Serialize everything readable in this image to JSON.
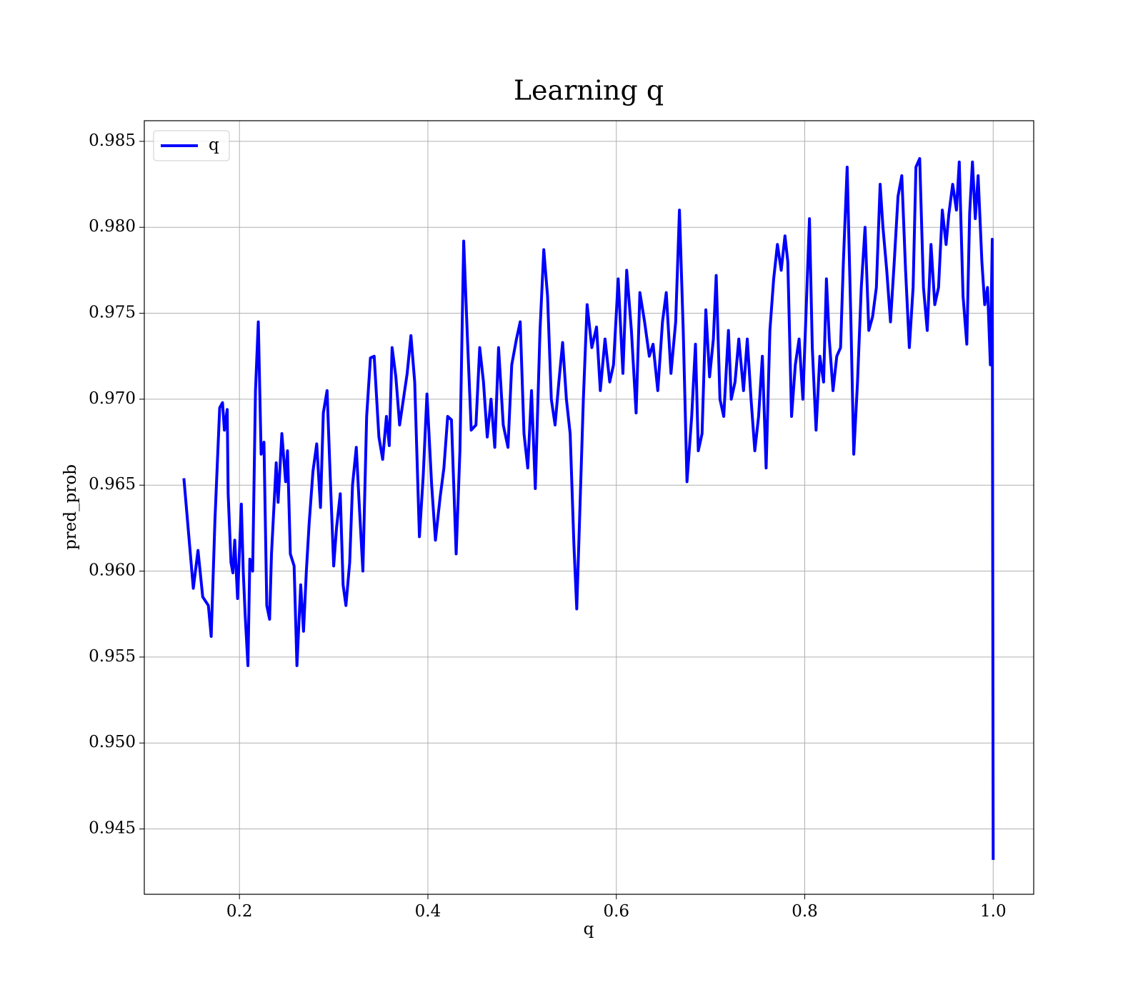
{
  "chart_data": {
    "type": "line",
    "title": "Learning q",
    "xlabel": "q",
    "ylabel": "pred_prob",
    "x": [
      0.141,
      0.151,
      0.156,
      0.161,
      0.167,
      0.17,
      0.174,
      0.179,
      0.182,
      0.184,
      0.187,
      0.188,
      0.191,
      0.193,
      0.195,
      0.198,
      0.202,
      0.204,
      0.206,
      0.209,
      0.211,
      0.214,
      0.217,
      0.22,
      0.223,
      0.226,
      0.229,
      0.232,
      0.234,
      0.239,
      0.241,
      0.245,
      0.249,
      0.251,
      0.254,
      0.258,
      0.261,
      0.265,
      0.268,
      0.271,
      0.274,
      0.278,
      0.282,
      0.286,
      0.289,
      0.293,
      0.296,
      0.3,
      0.303,
      0.307,
      0.31,
      0.313,
      0.317,
      0.32,
      0.324,
      0.327,
      0.331,
      0.335,
      0.339,
      0.343,
      0.348,
      0.352,
      0.356,
      0.359,
      0.362,
      0.366,
      0.37,
      0.374,
      0.378,
      0.382,
      0.386,
      0.391,
      0.395,
      0.399,
      0.404,
      0.408,
      0.413,
      0.417,
      0.421,
      0.425,
      0.43,
      0.434,
      0.438,
      0.442,
      0.446,
      0.451,
      0.455,
      0.459,
      0.463,
      0.467,
      0.471,
      0.475,
      0.48,
      0.485,
      0.489,
      0.494,
      0.498,
      0.502,
      0.506,
      0.51,
      0.514,
      0.519,
      0.523,
      0.527,
      0.531,
      0.535,
      0.539,
      0.543,
      0.547,
      0.551,
      0.555,
      0.558,
      0.561,
      0.565,
      0.569,
      0.574,
      0.579,
      0.583,
      0.588,
      0.593,
      0.597,
      0.602,
      0.607,
      0.611,
      0.616,
      0.621,
      0.625,
      0.63,
      0.635,
      0.639,
      0.644,
      0.649,
      0.653,
      0.658,
      0.663,
      0.667,
      0.671,
      0.675,
      0.68,
      0.684,
      0.687,
      0.691,
      0.695,
      0.699,
      0.703,
      0.706,
      0.71,
      0.714,
      0.719,
      0.722,
      0.726,
      0.73,
      0.735,
      0.739,
      0.743,
      0.747,
      0.751,
      0.755,
      0.759,
      0.763,
      0.767,
      0.771,
      0.775,
      0.779,
      0.782,
      0.786,
      0.79,
      0.794,
      0.798,
      0.802,
      0.805,
      0.808,
      0.812,
      0.816,
      0.82,
      0.823,
      0.826,
      0.83,
      0.834,
      0.838,
      0.841,
      0.845,
      0.849,
      0.852,
      0.856,
      0.86,
      0.864,
      0.868,
      0.872,
      0.876,
      0.88,
      0.883,
      0.887,
      0.891,
      0.895,
      0.899,
      0.903,
      0.907,
      0.911,
      0.915,
      0.918,
      0.922,
      0.926,
      0.93,
      0.934,
      0.938,
      0.942,
      0.946,
      0.95,
      0.953,
      0.957,
      0.961,
      0.964,
      0.968,
      0.972,
      0.975,
      0.978,
      0.981,
      0.984,
      0.988,
      0.991,
      0.994,
      0.997,
      0.999,
      1.0
    ],
    "series": [
      {
        "name": "q",
        "color": "#0000ff",
        "values": [
          0.9654,
          0.959,
          0.9612,
          0.9585,
          0.958,
          0.9562,
          0.963,
          0.9695,
          0.9698,
          0.9682,
          0.9694,
          0.9645,
          0.9605,
          0.9599,
          0.9618,
          0.9584,
          0.9639,
          0.96,
          0.9575,
          0.9545,
          0.9607,
          0.96,
          0.9705,
          0.9745,
          0.9668,
          0.9675,
          0.958,
          0.9572,
          0.961,
          0.9663,
          0.964,
          0.968,
          0.9652,
          0.967,
          0.961,
          0.9603,
          0.9545,
          0.9592,
          0.9565,
          0.96,
          0.9628,
          0.9658,
          0.9674,
          0.9637,
          0.9692,
          0.9705,
          0.966,
          0.9603,
          0.9625,
          0.9645,
          0.9592,
          0.958,
          0.9605,
          0.965,
          0.9672,
          0.964,
          0.96,
          0.969,
          0.9724,
          0.9725,
          0.9678,
          0.9665,
          0.969,
          0.9673,
          0.973,
          0.9713,
          0.9685,
          0.97,
          0.9715,
          0.9737,
          0.971,
          0.962,
          0.9655,
          0.9703,
          0.965,
          0.9618,
          0.9643,
          0.966,
          0.969,
          0.9688,
          0.961,
          0.967,
          0.9792,
          0.9735,
          0.9682,
          0.9685,
          0.973,
          0.971,
          0.9678,
          0.97,
          0.9672,
          0.973,
          0.9685,
          0.9672,
          0.972,
          0.9735,
          0.9745,
          0.968,
          0.966,
          0.9705,
          0.9648,
          0.974,
          0.9787,
          0.976,
          0.97,
          0.9685,
          0.971,
          0.9733,
          0.97,
          0.968,
          0.9615,
          0.9578,
          0.963,
          0.97,
          0.9755,
          0.973,
          0.9742,
          0.9705,
          0.9735,
          0.971,
          0.972,
          0.977,
          0.9715,
          0.9775,
          0.974,
          0.9692,
          0.9762,
          0.9745,
          0.9725,
          0.9732,
          0.9705,
          0.9745,
          0.9762,
          0.9715,
          0.9745,
          0.981,
          0.974,
          0.9652,
          0.969,
          0.9732,
          0.967,
          0.968,
          0.9752,
          0.9713,
          0.9735,
          0.9772,
          0.97,
          0.969,
          0.974,
          0.97,
          0.971,
          0.9735,
          0.9705,
          0.9735,
          0.97,
          0.967,
          0.969,
          0.9725,
          0.966,
          0.974,
          0.977,
          0.979,
          0.9775,
          0.9795,
          0.978,
          0.969,
          0.972,
          0.9735,
          0.97,
          0.976,
          0.9805,
          0.973,
          0.9682,
          0.9725,
          0.971,
          0.977,
          0.9735,
          0.9705,
          0.9725,
          0.973,
          0.978,
          0.9835,
          0.9745,
          0.9668,
          0.971,
          0.9765,
          0.98,
          0.974,
          0.9748,
          0.9765,
          0.9825,
          0.98,
          0.9775,
          0.9745,
          0.978,
          0.9818,
          0.983,
          0.9775,
          0.973,
          0.9765,
          0.9835,
          0.984,
          0.9765,
          0.974,
          0.979,
          0.9755,
          0.9765,
          0.981,
          0.979,
          0.9808,
          0.9825,
          0.981,
          0.9838,
          0.976,
          0.9732,
          0.9808,
          0.9838,
          0.9805,
          0.983,
          0.978,
          0.9755,
          0.9765,
          0.972,
          0.9793,
          0.9432
        ]
      }
    ],
    "xlim": [
      0.099,
      1.043
    ],
    "ylim": [
      0.9412,
      0.9862
    ],
    "xticks": [
      0.2,
      0.4,
      0.6,
      0.8,
      {
        "value": 1.0,
        "label": "1.0"
      }
    ],
    "yticks": [
      0.945,
      {
        "value": 0.95,
        "label": "0.950"
      },
      0.955,
      {
        "value": 0.96,
        "label": "0.960"
      },
      0.965,
      {
        "value": 0.97,
        "label": "0.970"
      },
      0.975,
      {
        "value": 0.98,
        "label": "0.980"
      },
      0.985
    ],
    "grid": true,
    "legend": "upper left"
  }
}
